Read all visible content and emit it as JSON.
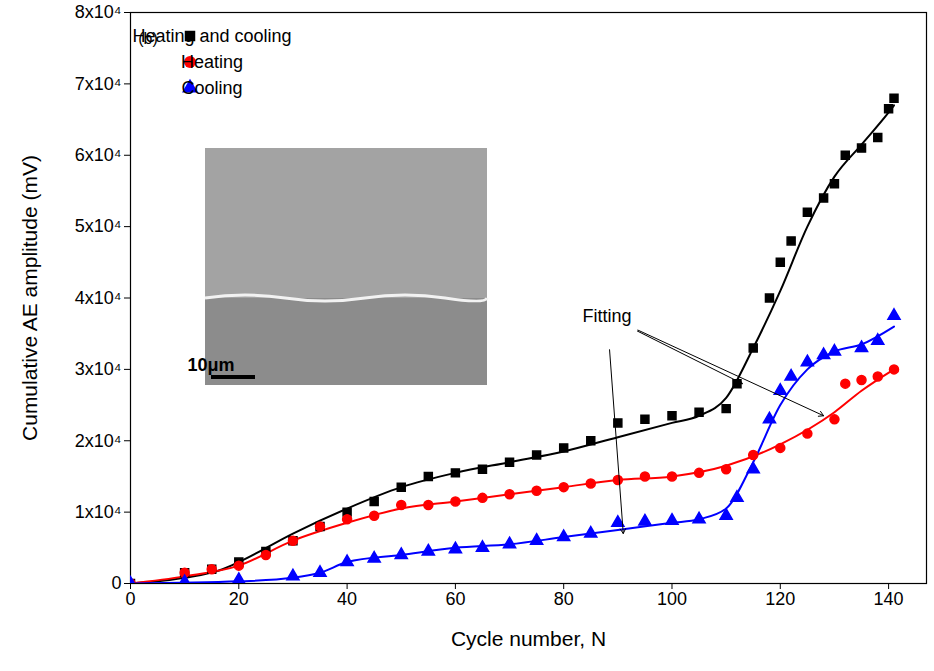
{
  "chart_data": {
    "type": "scatter",
    "panel_label": "(b)",
    "x_label": "Cycle number, N",
    "y_label": "Cumulative AE amplitude (mV)",
    "xlim": [
      0,
      147
    ],
    "xticks": [
      0,
      20,
      40,
      60,
      80,
      100,
      120,
      140
    ],
    "ylim": [
      0,
      80000
    ],
    "yticks": [
      0,
      {
        "value": 10000,
        "label": "1x10⁴"
      },
      {
        "value": 20000,
        "label": "2x10⁴"
      },
      {
        "value": 30000,
        "label": "3x10⁴"
      },
      {
        "value": 40000,
        "label": "4x10⁴"
      },
      {
        "value": 50000,
        "label": "5x10⁴"
      },
      {
        "value": 60000,
        "label": "6x10⁴"
      },
      {
        "value": 70000,
        "label": "7x10⁴"
      },
      {
        "value": 80000,
        "label": "8x10⁴"
      }
    ],
    "grid": false,
    "legend": "upper left",
    "inset_scale_bar": "10μm",
    "annotations": [
      {
        "text": "Fitting",
        "x": 88,
        "y": 37500,
        "arrows_to": [
          [
            113,
            28000
          ],
          [
            128,
            23500
          ],
          [
            91,
            7000
          ]
        ]
      }
    ],
    "series": [
      {
        "name": "Heating and cooling",
        "color": "#000000",
        "marker": "square",
        "x": [
          0,
          10,
          15,
          20,
          25,
          30,
          35,
          40,
          45,
          50,
          55,
          60,
          65,
          70,
          75,
          80,
          85,
          90,
          95,
          100,
          105,
          110,
          112,
          115,
          118,
          120,
          122,
          125,
          128,
          130,
          132,
          135,
          138,
          140,
          141
        ],
        "values": [
          0,
          1500,
          2000,
          3000,
          4500,
          6000,
          8000,
          10000,
          11500,
          13500,
          15000,
          15500,
          16000,
          17000,
          18000,
          19000,
          20000,
          22500,
          23000,
          23500,
          24000,
          24500,
          28000,
          33000,
          40000,
          45000,
          48000,
          52000,
          54000,
          56000,
          60000,
          61000,
          62500,
          66500,
          68000
        ],
        "fit": {
          "x": [
            0,
            10,
            17,
            20,
            30,
            40,
            50,
            60,
            70,
            80,
            90,
            100,
            105,
            110,
            115,
            120,
            125,
            130,
            135,
            140,
            141
          ],
          "values": [
            0,
            800,
            2000,
            3000,
            7000,
            10500,
            13500,
            15500,
            17000,
            18500,
            20500,
            22500,
            23500,
            26000,
            33000,
            41000,
            50000,
            57000,
            61500,
            66000,
            67000
          ]
        }
      },
      {
        "name": "Heating",
        "color": "#ff0000",
        "marker": "circle",
        "x": [
          0,
          10,
          15,
          20,
          25,
          30,
          35,
          40,
          45,
          50,
          55,
          60,
          65,
          70,
          75,
          80,
          85,
          90,
          95,
          100,
          105,
          110,
          115,
          120,
          125,
          130,
          132,
          135,
          138,
          141
        ],
        "values": [
          0,
          1500,
          2000,
          2500,
          4000,
          6000,
          8000,
          9000,
          9500,
          11000,
          11000,
          11500,
          12000,
          12500,
          13000,
          13500,
          14000,
          14500,
          15000,
          15000,
          15500,
          16000,
          18000,
          19000,
          21000,
          23000,
          28000,
          28500,
          29000,
          30000
        ],
        "fit": {
          "x": [
            0,
            10,
            20,
            30,
            40,
            50,
            60,
            70,
            80,
            90,
            100,
            110,
            120,
            130,
            135,
            141
          ],
          "values": [
            0,
            1000,
            2500,
            6000,
            8500,
            10500,
            11500,
            12500,
            13500,
            14500,
            15000,
            16500,
            19500,
            24000,
            27000,
            30000
          ]
        }
      },
      {
        "name": "Cooling",
        "color": "#0000ff",
        "marker": "triangle",
        "x": [
          0,
          10,
          20,
          30,
          35,
          40,
          45,
          50,
          55,
          60,
          65,
          70,
          75,
          80,
          85,
          90,
          95,
          100,
          105,
          110,
          112,
          115,
          118,
          120,
          122,
          125,
          128,
          130,
          135,
          138,
          141
        ],
        "values": [
          0,
          200,
          500,
          1000,
          1500,
          3000,
          3500,
          4000,
          4500,
          4800,
          5000,
          5500,
          6000,
          6500,
          7000,
          8500,
          8700,
          8800,
          9000,
          9500,
          12000,
          16000,
          23000,
          27000,
          29000,
          31000,
          32000,
          32500,
          33000,
          34000,
          37500
        ],
        "fit": {
          "x": [
            0,
            20,
            30,
            35,
            40,
            50,
            60,
            70,
            80,
            90,
            100,
            105,
            110,
            115,
            120,
            125,
            130,
            135,
            141
          ],
          "values": [
            0,
            300,
            800,
            1500,
            3000,
            4000,
            5000,
            5500,
            6500,
            7500,
            8500,
            9000,
            10500,
            17000,
            25000,
            30000,
            32500,
            33500,
            36000
          ]
        }
      }
    ]
  }
}
